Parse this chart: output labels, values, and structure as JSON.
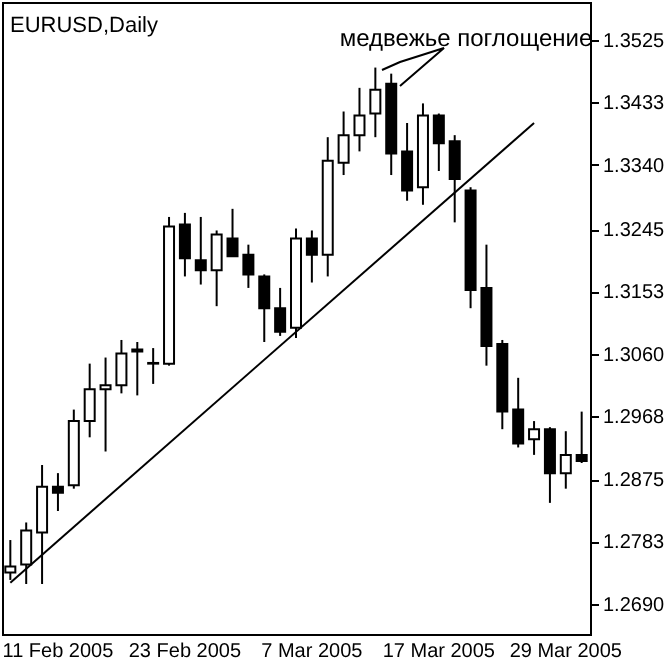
{
  "chart_data": {
    "type": "candlestick",
    "title": "EURUSD,Daily",
    "categories": [
      null,
      null,
      null,
      "11 Feb 2005",
      null,
      null,
      null,
      null,
      null,
      null,
      null,
      "23 Feb 2005",
      null,
      null,
      null,
      null,
      null,
      null,
      null,
      "7 Mar 2005",
      null,
      null,
      null,
      null,
      null,
      null,
      null,
      "17 Mar 2005",
      null,
      null,
      null,
      null,
      null,
      null,
      null,
      "29 Mar 2005",
      null
    ],
    "ohlc": [
      [
        1.2737,
        1.2785,
        1.2726,
        1.2746
      ],
      [
        1.2749,
        1.2811,
        1.272,
        1.2799
      ],
      [
        1.2796,
        1.2896,
        1.272,
        1.2864
      ],
      [
        1.2864,
        1.2884,
        1.2828,
        1.2855
      ],
      [
        1.2866,
        1.2978,
        1.2861,
        1.2961
      ],
      [
        1.2961,
        1.3046,
        1.2937,
        1.3008
      ],
      [
        1.3008,
        1.3055,
        1.2916,
        1.3014
      ],
      [
        1.3014,
        1.3081,
        1.3002,
        1.3061
      ],
      [
        1.3064,
        1.3078,
        1.2999,
        1.3067
      ],
      [
        1.3047,
        1.3069,
        1.3016,
        1.3046
      ],
      [
        1.3046,
        1.3263,
        1.3043,
        1.3249
      ],
      [
        1.3252,
        1.3269,
        1.3175,
        1.3202
      ],
      [
        1.3199,
        1.3263,
        1.3163,
        1.3184
      ],
      [
        1.3184,
        1.3243,
        1.3131,
        1.3237
      ],
      [
        1.3231,
        1.3275,
        1.3205,
        1.3205
      ],
      [
        1.3207,
        1.3222,
        1.3158,
        1.3178
      ],
      [
        1.3175,
        1.3178,
        1.3078,
        1.3128
      ],
      [
        1.3128,
        1.3158,
        1.3087,
        1.3093
      ],
      [
        1.3099,
        1.3246,
        1.3084,
        1.3231
      ],
      [
        1.3231,
        1.3243,
        1.3166,
        1.3207
      ],
      [
        1.3207,
        1.3381,
        1.3175,
        1.3346
      ],
      [
        1.3343,
        1.3419,
        1.3325,
        1.3384
      ],
      [
        1.3384,
        1.3454,
        1.336,
        1.3413
      ],
      [
        1.3416,
        1.3484,
        1.3381,
        1.3451
      ],
      [
        1.346,
        1.3475,
        1.3325,
        1.3357
      ],
      [
        1.336,
        1.3402,
        1.3287,
        1.3302
      ],
      [
        1.3307,
        1.3431,
        1.3281,
        1.3413
      ],
      [
        1.3413,
        1.3416,
        1.3331,
        1.3372
      ],
      [
        1.3375,
        1.3384,
        1.3255,
        1.3319
      ],
      [
        1.3302,
        1.3307,
        1.3128,
        1.3155
      ],
      [
        1.3158,
        1.3222,
        1.3043,
        1.3072
      ],
      [
        1.3075,
        1.3081,
        1.2949,
        1.2975
      ],
      [
        1.2978,
        1.3025,
        1.2922,
        1.2928
      ],
      [
        1.2934,
        1.2961,
        1.2911,
        1.2949
      ],
      [
        1.2949,
        1.2952,
        1.284,
        1.2884
      ],
      [
        1.2884,
        1.2946,
        1.2861,
        1.2911
      ],
      [
        1.2911,
        1.2975,
        1.2899,
        1.2902
      ]
    ],
    "series": [
      {
        "type": "line",
        "color": "#000000",
        "values": [
          1.2722,
          null,
          null,
          null,
          null,
          null,
          null,
          null,
          null,
          null,
          null,
          null,
          null,
          null,
          null,
          null,
          null,
          null,
          null,
          null,
          null,
          null,
          null,
          null,
          null,
          null,
          null,
          null,
          null,
          null,
          null,
          null,
          null,
          1.3402,
          null,
          null,
          null
        ]
      }
    ],
    "ylim": [
      1.2646,
      1.3581
    ],
    "yticks": [
      1.3525,
      1.3433,
      {
        "value": 1.334,
        "label": "1.3340"
      },
      1.3245,
      1.3153,
      {
        "value": 1.306,
        "label": "1.3060"
      },
      1.2968,
      1.2875,
      1.2783,
      {
        "value": 1.269,
        "label": "1.2690"
      }
    ],
    "annotations": [
      "медвежье поглощение"
    ],
    "grid": false
  }
}
